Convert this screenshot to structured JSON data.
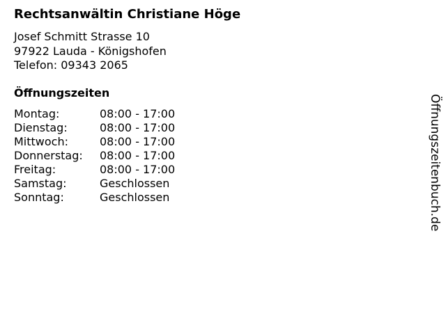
{
  "business": {
    "name": "Rechtsanwältin Christiane Höge",
    "street": "Josef Schmitt Strasse 10",
    "city": "97922 Lauda - Königshofen",
    "phone": "Telefon: 09343 2065"
  },
  "hours": {
    "heading": "Öffnungszeiten",
    "rows": [
      {
        "day": "Montag:",
        "time": "08:00 - 17:00"
      },
      {
        "day": "Dienstag:",
        "time": "08:00 - 17:00"
      },
      {
        "day": "Mittwoch:",
        "time": "08:00 - 17:00"
      },
      {
        "day": "Donnerstag:",
        "time": "08:00 - 17:00"
      },
      {
        "day": "Freitag:",
        "time": "08:00 - 17:00"
      },
      {
        "day": "Samstag:",
        "time": "Geschlossen"
      },
      {
        "day": "Sonntag:",
        "time": "Geschlossen"
      }
    ]
  },
  "watermark": "Öffnungszeitenbuch.de"
}
